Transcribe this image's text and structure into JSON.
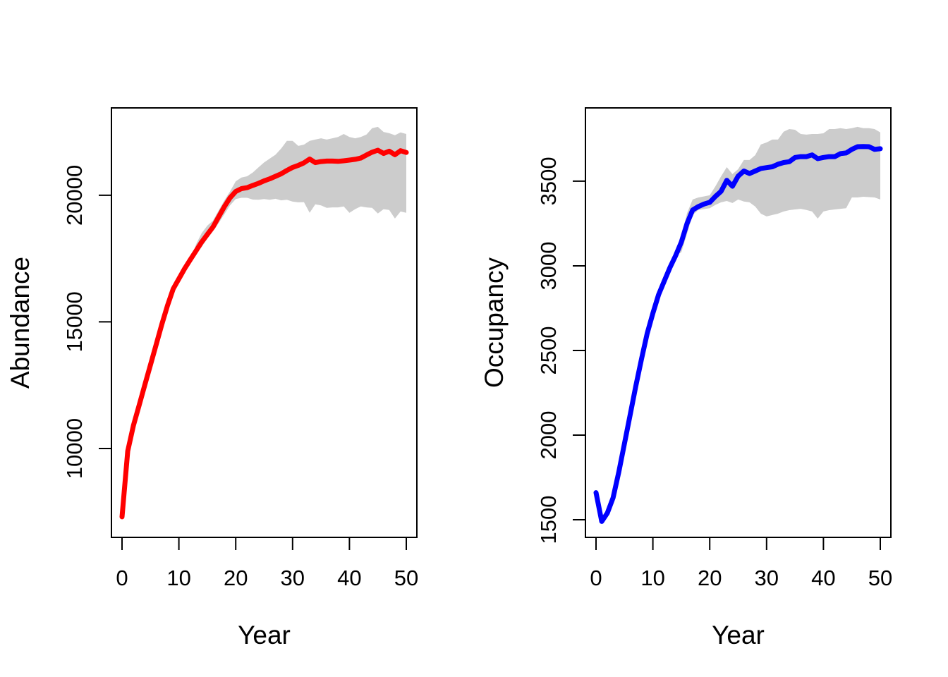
{
  "figure": {
    "background": "#FFFFFF",
    "panels": 2
  },
  "chart_data": [
    {
      "type": "line",
      "panel": "left",
      "title": "",
      "xlabel": "Year",
      "ylabel": "Abundance",
      "legend": null,
      "grid": false,
      "line_color": "#FF0000",
      "band_color": "#CCCCCC",
      "axis_color": "#000000",
      "xlim": [
        -1.86,
        51.86
      ],
      "ylim": [
        6490,
        23450
      ],
      "xticks": [
        0,
        10,
        20,
        30,
        40,
        50
      ],
      "xtick_labels": [
        "0",
        "10",
        "20",
        "30",
        "40",
        "50"
      ],
      "yticks": [
        10000,
        15000,
        20000
      ],
      "ytick_labels": [
        "10000",
        "15000",
        "20000"
      ],
      "x": [
        0,
        1,
        2,
        3,
        4,
        5,
        6,
        7,
        8,
        9,
        10,
        11,
        12,
        13,
        14,
        15,
        16,
        17,
        18,
        19,
        20,
        21,
        22,
        23,
        24,
        25,
        26,
        27,
        28,
        29,
        30,
        31,
        32,
        33,
        34,
        35,
        36,
        37,
        38,
        39,
        40,
        41,
        42,
        43,
        44,
        45,
        46,
        47,
        48,
        49,
        50
      ],
      "y": [
        7300,
        9900,
        10900,
        11700,
        12500,
        13300,
        14100,
        14900,
        15650,
        16300,
        16700,
        17100,
        17450,
        17800,
        18150,
        18450,
        18750,
        19150,
        19550,
        19900,
        20150,
        20260,
        20300,
        20390,
        20470,
        20570,
        20650,
        20750,
        20850,
        20980,
        21100,
        21180,
        21280,
        21430,
        21290,
        21330,
        21350,
        21350,
        21340,
        21360,
        21390,
        21420,
        21470,
        21590,
        21700,
        21780,
        21650,
        21740,
        21600,
        21760,
        21690
      ],
      "band": {
        "x": [
          12,
          13,
          14,
          15,
          16,
          17,
          18,
          19,
          20,
          21,
          22,
          23,
          24,
          25,
          26,
          27,
          28,
          29,
          30,
          31,
          32,
          33,
          34,
          35,
          36,
          37,
          38,
          39,
          40,
          41,
          42,
          43,
          44,
          45,
          46,
          47,
          48,
          49,
          50
        ],
        "lower": [
          17400,
          17650,
          17950,
          18280,
          18580,
          18900,
          19250,
          19600,
          19850,
          19900,
          19900,
          19830,
          19820,
          19850,
          19820,
          19860,
          19800,
          19820,
          19750,
          19720,
          19730,
          19310,
          19640,
          19600,
          19500,
          19520,
          19520,
          19560,
          19310,
          19450,
          19560,
          19520,
          19500,
          19280,
          19450,
          19420,
          19080,
          19360,
          19310
        ],
        "upper": [
          17400,
          18050,
          18500,
          18800,
          19000,
          19400,
          19800,
          20150,
          20550,
          20700,
          20750,
          20900,
          21100,
          21300,
          21450,
          21600,
          21850,
          22150,
          22150,
          21950,
          22000,
          22150,
          22200,
          22250,
          22200,
          22250,
          22300,
          22420,
          22300,
          22250,
          22300,
          22400,
          22650,
          22700,
          22500,
          22450,
          22370,
          22480,
          22420
        ]
      }
    },
    {
      "type": "line",
      "panel": "right",
      "title": "",
      "xlabel": "Year",
      "ylabel": "Occupancy",
      "legend": null,
      "grid": false,
      "line_color": "#0000FF",
      "band_color": "#CCCCCC",
      "axis_color": "#000000",
      "xlim": [
        -1.86,
        51.86
      ],
      "ylim": [
        1396,
        3933
      ],
      "xticks": [
        0,
        10,
        20,
        30,
        40,
        50
      ],
      "xtick_labels": [
        "0",
        "10",
        "20",
        "30",
        "40",
        "50"
      ],
      "yticks": [
        1500,
        2000,
        2500,
        3000,
        3500
      ],
      "ytick_labels": [
        "1500",
        "2000",
        "2500",
        "3000",
        "3500"
      ],
      "x": [
        0,
        1,
        2,
        3,
        4,
        5,
        6,
        7,
        8,
        9,
        10,
        11,
        12,
        13,
        14,
        15,
        16,
        17,
        18,
        19,
        20,
        21,
        22,
        23,
        24,
        25,
        26,
        27,
        28,
        29,
        30,
        31,
        32,
        33,
        34,
        35,
        36,
        37,
        38,
        39,
        40,
        41,
        42,
        43,
        44,
        45,
        46,
        47,
        48,
        49,
        50
      ],
      "y": [
        1660,
        1490,
        1540,
        1630,
        1780,
        1950,
        2120,
        2290,
        2450,
        2600,
        2720,
        2830,
        2910,
        2990,
        3060,
        3140,
        3250,
        3330,
        3350,
        3365,
        3375,
        3410,
        3440,
        3505,
        3470,
        3530,
        3560,
        3545,
        3560,
        3575,
        3580,
        3585,
        3600,
        3610,
        3615,
        3640,
        3645,
        3645,
        3655,
        3633,
        3640,
        3645,
        3645,
        3663,
        3667,
        3688,
        3704,
        3705,
        3704,
        3688,
        3692
      ],
      "band": {
        "x": [
          14,
          15,
          16,
          17,
          18,
          19,
          20,
          21,
          22,
          23,
          24,
          25,
          26,
          27,
          28,
          29,
          30,
          31,
          32,
          33,
          34,
          35,
          36,
          37,
          38,
          39,
          40,
          41,
          42,
          43,
          44,
          45,
          46,
          47,
          48,
          49,
          50
        ],
        "lower": [
          3060,
          3080,
          3190,
          3300,
          3330,
          3335,
          3340,
          3360,
          3375,
          3383,
          3371,
          3392,
          3380,
          3375,
          3350,
          3308,
          3292,
          3300,
          3308,
          3321,
          3329,
          3333,
          3337,
          3330,
          3321,
          3279,
          3321,
          3329,
          3333,
          3337,
          3340,
          3404,
          3404,
          3408,
          3406,
          3404,
          3392
        ],
        "upper": [
          3060,
          3170,
          3310,
          3392,
          3404,
          3410,
          3417,
          3470,
          3529,
          3583,
          3542,
          3571,
          3625,
          3625,
          3654,
          3717,
          3729,
          3746,
          3746,
          3792,
          3808,
          3804,
          3779,
          3775,
          3779,
          3779,
          3783,
          3808,
          3808,
          3813,
          3808,
          3813,
          3821,
          3813,
          3813,
          3808,
          3788
        ]
      }
    }
  ]
}
